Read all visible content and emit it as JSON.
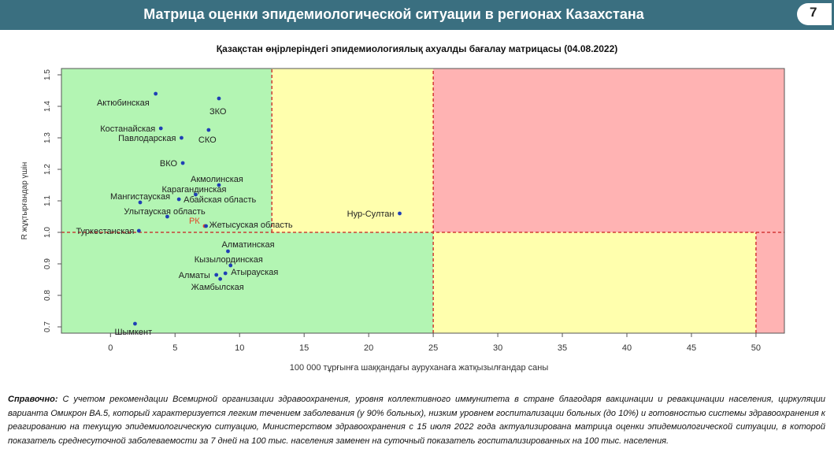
{
  "header": {
    "title": "Матрица оценки эпидемиологической ситуации в регионах Казахстана",
    "page_number": "7"
  },
  "chart_data": {
    "type": "scatter",
    "title": "Қазақстан өңірлеріндегі эпидемиологиялық ахуалды бағалау матрицасы  (04.08.2022)",
    "xlabel": "100 000 тұрғынға шаққандағы ауруханаға жатқызылғандар саны",
    "ylabel": "R жұқтырғандар үшін",
    "xlim": [
      -3.8,
      52.2
    ],
    "ylim": [
      0.68,
      1.52
    ],
    "xticks": [
      0,
      5,
      10,
      15,
      20,
      25,
      30,
      35,
      40,
      45,
      50
    ],
    "yticks": [
      0.7,
      0.8,
      0.9,
      1.0,
      1.1,
      1.2,
      1.3,
      1.4,
      1.5
    ],
    "ytick_labels": [
      "0.7",
      "0.8",
      "0.9",
      "1.0",
      "1.1",
      "1.2",
      "1.3",
      "1.4",
      "1.5"
    ],
    "zones": [
      {
        "x0": -3.8,
        "x1": 12.5,
        "y0": 1.0,
        "y1": 1.52,
        "color": "#b3f5b3"
      },
      {
        "x0": 12.5,
        "x1": 25,
        "y0": 1.0,
        "y1": 1.52,
        "color": "#ffffad"
      },
      {
        "x0": 25,
        "x1": 52.2,
        "y0": 1.0,
        "y1": 1.52,
        "color": "#ffb3b3"
      },
      {
        "x0": -3.8,
        "x1": 25,
        "y0": 0.68,
        "y1": 1.0,
        "color": "#b3f5b3"
      },
      {
        "x0": 25,
        "x1": 50,
        "y0": 0.68,
        "y1": 1.0,
        "color": "#ffffad"
      },
      {
        "x0": 50,
        "x1": 52.2,
        "y0": 0.68,
        "y1": 1.0,
        "color": "#ffb3b3"
      }
    ],
    "threshold_lines": [
      {
        "x": [
          12.5,
          12.5
        ],
        "y": [
          1.0,
          1.52
        ]
      },
      {
        "x": [
          25,
          25
        ],
        "y": [
          0.68,
          1.52
        ]
      },
      {
        "x": [
          50,
          50
        ],
        "y": [
          0.68,
          1.0
        ]
      },
      {
        "x": [
          -3.8,
          52.2
        ],
        "y": [
          1.0,
          1.0
        ]
      }
    ],
    "colors": {
      "point": "#1f3fb5",
      "rk_point": "#e0492a",
      "threshold": "#cc1f1f",
      "label": "#222222"
    },
    "points": [
      {
        "name": "Актюбинская",
        "x": 3.5,
        "y": 1.44
      },
      {
        "name": "ЗКО",
        "x": 8.4,
        "y": 1.425
      },
      {
        "name": "Костанайская",
        "x": 3.9,
        "y": 1.33
      },
      {
        "name": "СКО",
        "x": 7.6,
        "y": 1.325
      },
      {
        "name": "Павлодарская",
        "x": 5.5,
        "y": 1.3
      },
      {
        "name": "ВКО",
        "x": 5.6,
        "y": 1.22
      },
      {
        "name": "Акмолинская",
        "x": 8.4,
        "y": 1.15
      },
      {
        "name": "Карагандинская",
        "x": 6.6,
        "y": 1.12
      },
      {
        "name": "Абайская область",
        "x": 5.3,
        "y": 1.105
      },
      {
        "name": "Мангистауская",
        "x": 2.3,
        "y": 1.095
      },
      {
        "name": "Улытауская область",
        "x": 4.4,
        "y": 1.05
      },
      {
        "name": "Нур-Султан",
        "x": 22.4,
        "y": 1.06
      },
      {
        "name": "РК",
        "x": 7.3,
        "y": 1.02,
        "highlight": true
      },
      {
        "name": "Жетысуская область",
        "x": 7.4,
        "y": 1.02
      },
      {
        "name": "Туркестанская",
        "x": 2.2,
        "y": 1.005
      },
      {
        "name": "Алматинская",
        "x": 9.1,
        "y": 0.94
      },
      {
        "name": "Кызылординская",
        "x": 9.3,
        "y": 0.895
      },
      {
        "name": "Атырауская",
        "x": 8.9,
        "y": 0.87
      },
      {
        "name": "Алматы",
        "x": 8.2,
        "y": 0.865
      },
      {
        "name": "Жамбылская",
        "x": 8.5,
        "y": 0.852
      },
      {
        "name": "Шымкент",
        "x": 1.9,
        "y": 0.71
      }
    ]
  },
  "note": {
    "label": "Справочно:",
    "text": " С учетом рекомендации Всемирной организации здравоохранения, уровня коллективного иммунитета в стране благодаря вакцинации и ревакцинации населения, циркуляции варианта Омикрон BA.5, который характеризуется легким течением заболевания (у 90% больных), низким уровнем госпитализации больных (до 10%) и готовностью системы здравоохранения к реагированию на текущую эпидемиологическую ситуацию, Министерством здравоохранения с 15 июля 2022 года актуализирована матрица оценки эпидемиологической ситуации, в которой показатель  среднесуточной заболеваемости за 7 дней на 100 тыс. населения заменен на  суточный показатель госпитализированных на 100 тыс. населения."
  }
}
